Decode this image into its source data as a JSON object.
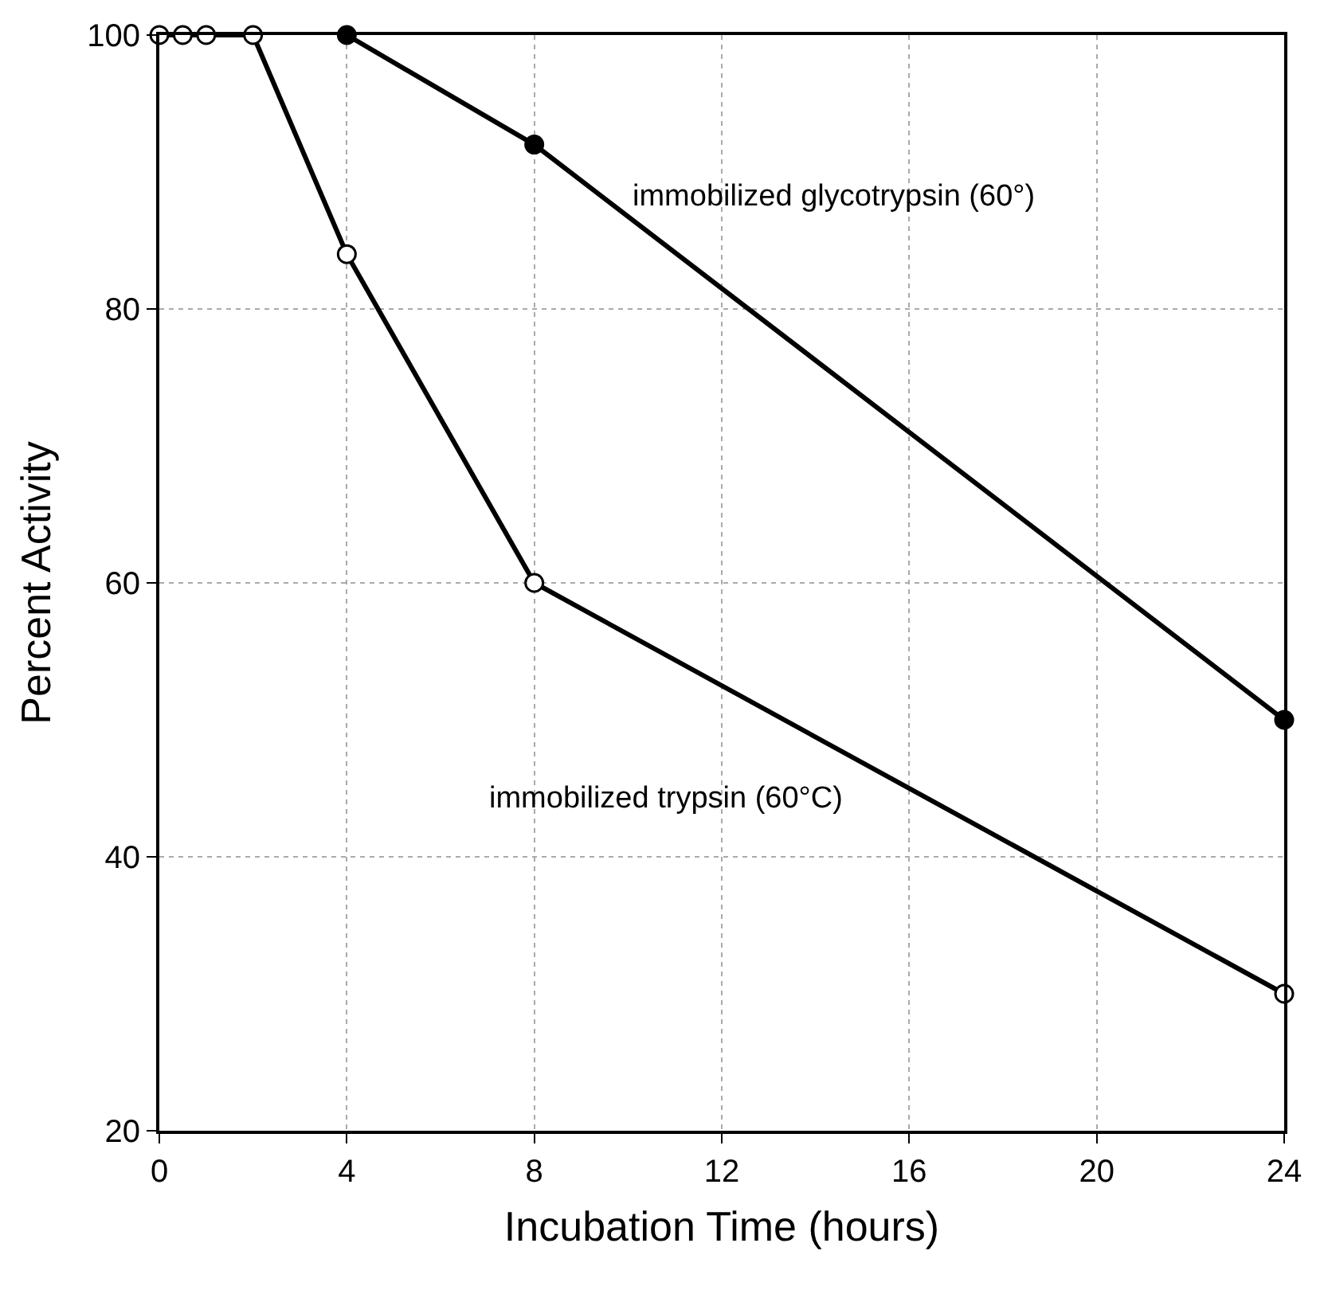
{
  "chart_data": {
    "type": "line",
    "xlabel": "Incubation Time (hours)",
    "ylabel": "Percent Activity",
    "xlim": [
      0,
      24
    ],
    "xticks": [
      0,
      4,
      8,
      12,
      16,
      20,
      24
    ],
    "ylim": [
      20,
      100
    ],
    "yticks": [
      20,
      40,
      60,
      80,
      100
    ],
    "grid": true,
    "line_style": "solid",
    "series": [
      {
        "color": "#000000",
        "marker": "circle",
        "x": [
          4,
          8,
          24
        ],
        "values": [
          100,
          92,
          50
        ]
      },
      {
        "color": "#000000",
        "marker": "circle",
        "x": [
          0,
          0.5,
          1,
          2,
          4,
          8,
          24
        ],
        "values": [
          100,
          100,
          100,
          100,
          84,
          60,
          30
        ]
      }
    ],
    "annotations": [
      "immobilized glycotrypsin (60°)",
      "immobilized trypsin (60°C)"
    ]
  }
}
